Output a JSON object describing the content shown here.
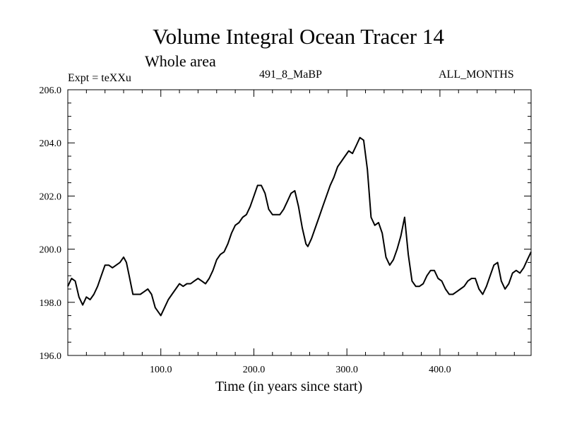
{
  "chart_data": {
    "type": "line",
    "title": "Volume Integral Ocean Tracer 14",
    "subtitle": "Whole area",
    "label_left": "Expt = teXXu",
    "label_center": "491_8_MaBP",
    "label_right": "ALL_MONTHS",
    "xlabel": "Time (in years since start)",
    "ylabel": "",
    "xlim": [
      0,
      498
    ],
    "ylim": [
      196.0,
      206.0
    ],
    "xticks": [
      100.0,
      200.0,
      300.0,
      400.0
    ],
    "xtick_labels": [
      "100.0",
      "200.0",
      "300.0",
      "400.0"
    ],
    "yticks": [
      196.0,
      198.0,
      200.0,
      202.0,
      204.0,
      206.0
    ],
    "ytick_labels": [
      "196.0",
      "198.0",
      "200.0",
      "202.0",
      "204.0",
      "206.0"
    ],
    "grid": false,
    "series": [
      {
        "name": "Volume Integral Ocean Tracer 14",
        "color": "#000000",
        "x": [
          0,
          4,
          8,
          12,
          16,
          20,
          24,
          28,
          32,
          36,
          40,
          44,
          48,
          52,
          56,
          60,
          63,
          66,
          70,
          74,
          78,
          82,
          86,
          90,
          94,
          98,
          100,
          104,
          108,
          112,
          116,
          120,
          124,
          128,
          132,
          136,
          140,
          144,
          148,
          152,
          156,
          160,
          164,
          168,
          172,
          176,
          180,
          184,
          188,
          192,
          196,
          200,
          204,
          208,
          212,
          216,
          220,
          224,
          228,
          232,
          236,
          240,
          244,
          248,
          252,
          256,
          258,
          262,
          266,
          270,
          274,
          278,
          282,
          286,
          290,
          294,
          298,
          302,
          306,
          310,
          314,
          318,
          322,
          326,
          330,
          334,
          338,
          342,
          346,
          350,
          354,
          358,
          362,
          366,
          370,
          374,
          378,
          382,
          386,
          390,
          394,
          398,
          402,
          406,
          410,
          414,
          418,
          422,
          426,
          430,
          434,
          438,
          442,
          446,
          450,
          454,
          458,
          462,
          466,
          470,
          474,
          478,
          482,
          486,
          490,
          494,
          498
        ],
        "values": [
          198.6,
          198.9,
          198.8,
          198.2,
          197.9,
          198.2,
          198.1,
          198.3,
          198.6,
          199.0,
          199.4,
          199.4,
          199.3,
          199.4,
          199.5,
          199.7,
          199.5,
          199.0,
          198.3,
          198.3,
          198.3,
          198.4,
          198.5,
          198.3,
          197.8,
          197.6,
          197.5,
          197.8,
          198.1,
          198.3,
          198.5,
          198.7,
          198.6,
          198.7,
          198.7,
          198.8,
          198.9,
          198.8,
          198.7,
          198.9,
          199.2,
          199.6,
          199.8,
          199.9,
          200.2,
          200.6,
          200.9,
          201.0,
          201.2,
          201.3,
          201.6,
          202.0,
          202.4,
          202.4,
          202.1,
          201.5,
          201.3,
          201.3,
          201.3,
          201.5,
          201.8,
          202.1,
          202.2,
          201.6,
          200.8,
          200.2,
          200.1,
          200.4,
          200.8,
          201.2,
          201.6,
          202.0,
          202.4,
          202.7,
          203.1,
          203.3,
          203.5,
          203.7,
          203.6,
          203.9,
          204.2,
          204.1,
          203.0,
          201.2,
          200.9,
          201.0,
          200.6,
          199.7,
          199.4,
          199.6,
          200.0,
          200.5,
          201.2,
          199.8,
          198.8,
          198.6,
          198.6,
          198.7,
          199.0,
          199.2,
          199.2,
          198.9,
          198.8,
          198.5,
          198.3,
          198.3,
          198.4,
          198.5,
          198.6,
          198.8,
          198.9,
          198.9,
          198.5,
          198.3,
          198.6,
          199.0,
          199.4,
          199.5,
          198.8,
          198.5,
          198.7,
          199.1,
          199.2,
          199.1,
          199.3,
          199.6,
          199.9
        ]
      }
    ]
  }
}
